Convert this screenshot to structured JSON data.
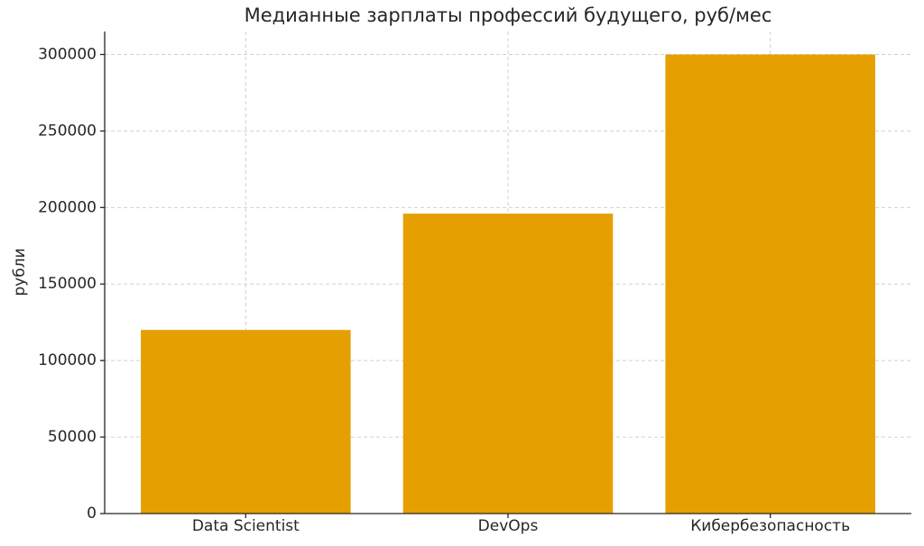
{
  "chart_data": {
    "type": "bar",
    "title": "Медианные зарплаты профессий будущего, руб/мес",
    "ylabel": "рубли",
    "categories": [
      "Data Scientist",
      "DevOps",
      "Кибербезопасность"
    ],
    "values": [
      120000,
      196000,
      300000
    ],
    "color": "#e69f00",
    "ylim": [
      0,
      315000
    ],
    "yticks": [
      0,
      50000,
      100000,
      150000,
      200000,
      250000,
      300000
    ],
    "grid": true
  }
}
